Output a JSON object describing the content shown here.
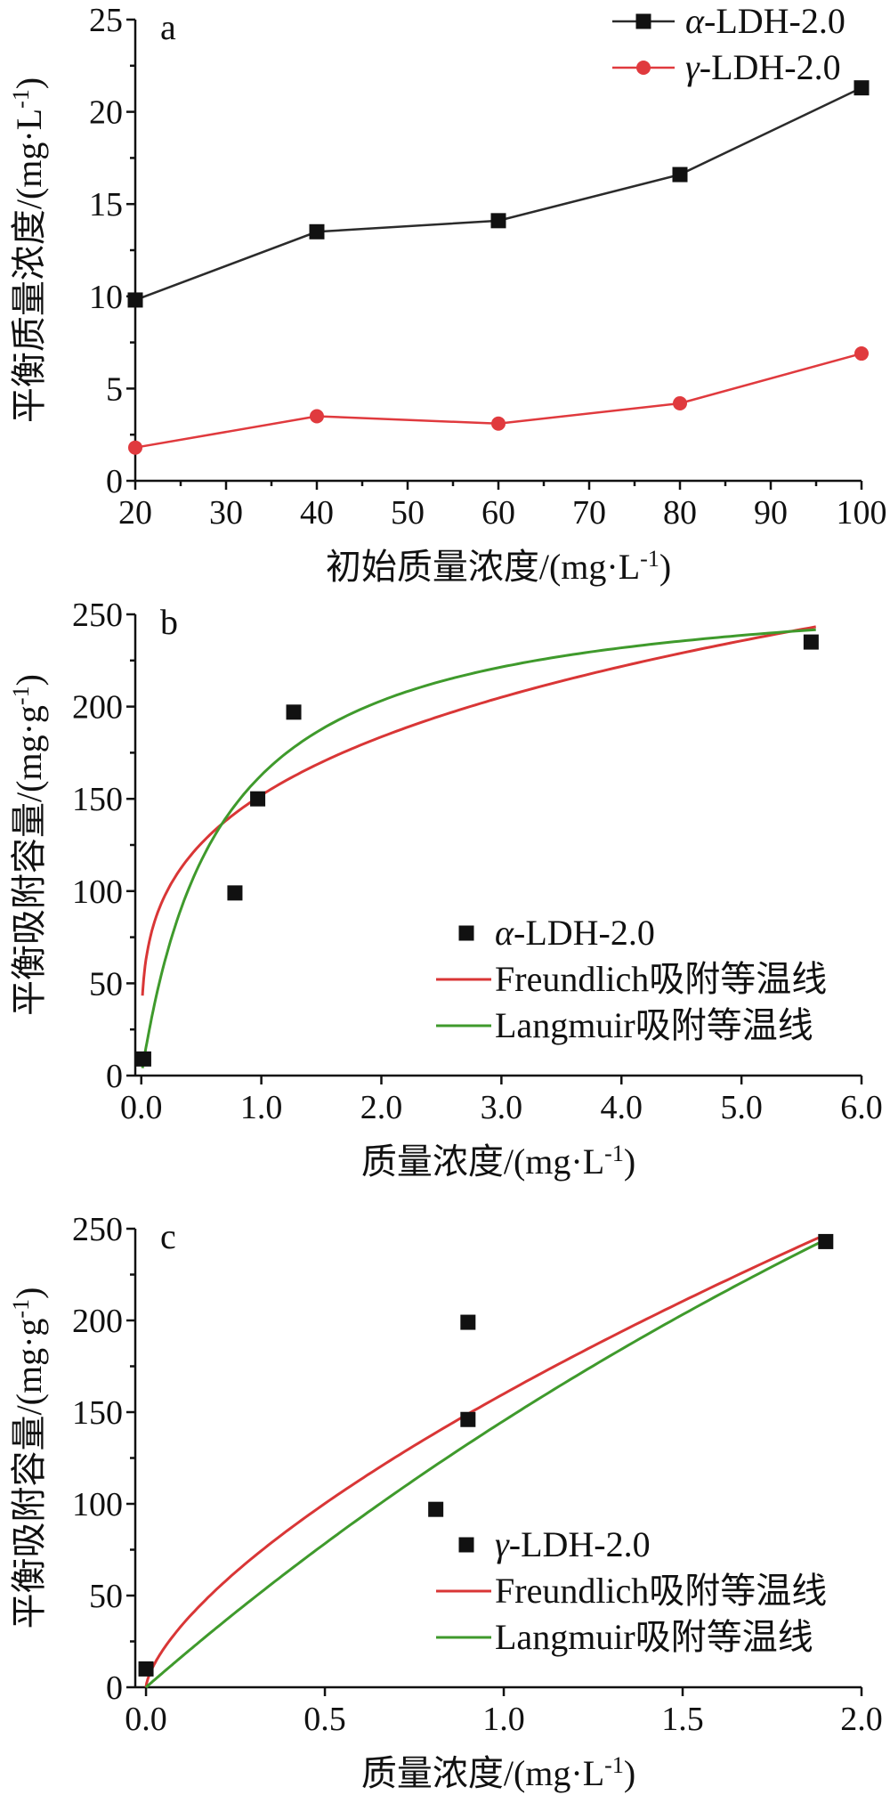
{
  "chart_data": [
    {
      "panel": "a",
      "type": "line",
      "xlabel": "初始质量浓度/(mg·L",
      "xlabel_sup": "-1",
      "xlabel_end": ")",
      "ylabel": "平衡质量浓度/(mg·L",
      "ylabel_sup": "-1",
      "ylabel_end": ")",
      "xlim": [
        20,
        100
      ],
      "ylim": [
        0,
        25
      ],
      "x_ticks": [
        "20",
        "30",
        "40",
        "50",
        "60",
        "70",
        "80",
        "90",
        "100"
      ],
      "y_ticks": [
        "0",
        "5",
        "10",
        "15",
        "20",
        "25"
      ],
      "legend_position": "top-right",
      "series": [
        {
          "name_greek": "α",
          "name": "-LDH-2.0",
          "marker": "square",
          "color": "#2b2b2b",
          "x": [
            20,
            40,
            60,
            80,
            100
          ],
          "y": [
            9.8,
            13.5,
            14.1,
            16.6,
            21.3
          ]
        },
        {
          "name_greek": "γ",
          "name": "-LDH-2.0",
          "marker": "circle",
          "color": "#e03a3e",
          "x": [
            20,
            40,
            60,
            80,
            100
          ],
          "y": [
            1.8,
            3.5,
            3.1,
            4.2,
            6.9
          ]
        }
      ]
    },
    {
      "panel": "b",
      "type": "scatter",
      "xlabel": "质量浓度/(mg·L",
      "xlabel_sup": "-1",
      "xlabel_end": ")",
      "ylabel": "平衡吸附容量/(mg·g",
      "ylabel_sup": "-1",
      "ylabel_end": ")",
      "xlim": [
        -0.05,
        6.0
      ],
      "ylim": [
        0,
        250
      ],
      "x_ticks": [
        "0.0",
        "1.0",
        "2.0",
        "3.0",
        "4.0",
        "5.0",
        "6.0"
      ],
      "y_ticks": [
        "0",
        "50",
        "100",
        "150",
        "200",
        "250"
      ],
      "legend_position": "bottom-right",
      "points": {
        "name_greek": "α",
        "name": "-LDH-2.0",
        "x": [
          0.02,
          0.78,
          0.97,
          1.27,
          5.58
        ],
        "y": [
          9,
          99,
          150,
          197,
          235
        ]
      },
      "fits": [
        {
          "name": "Freundlich吸附等温线",
          "color": "#d93636",
          "x_range": [
            0.01,
            5.62
          ],
          "model": "freundlich",
          "K": 152,
          "n": 3.67
        },
        {
          "name": "Langmuir吸附等温线",
          "color": "#3f9a2c",
          "x_range": [
            0.01,
            5.62
          ],
          "model": "langmuir",
          "qmax": 270,
          "KL": 1.52
        }
      ]
    },
    {
      "panel": "c",
      "type": "scatter",
      "xlabel": "质量浓度/(mg·L",
      "xlabel_sup": "-1",
      "xlabel_end": ")",
      "ylabel": "平衡吸附容量/(mg·g",
      "ylabel_sup": "-1",
      "ylabel_end": ")",
      "xlim": [
        -0.03,
        2.0
      ],
      "ylim": [
        0,
        250
      ],
      "x_ticks": [
        "0.0",
        "0.5",
        "1.0",
        "1.5",
        "2.0"
      ],
      "y_ticks": [
        "0",
        "50",
        "100",
        "150",
        "200",
        "250"
      ],
      "legend_position": "bottom-right",
      "points": {
        "name_greek": "γ",
        "name": "-LDH-2.0",
        "x": [
          0.0,
          0.81,
          0.9,
          0.9,
          1.9
        ],
        "y": [
          10,
          97,
          146,
          199,
          243
        ]
      },
      "fits": [
        {
          "name": "Freundlich吸附等温线",
          "color": "#d93636",
          "x_range": [
            0.0,
            1.88
          ],
          "model": "freundlich",
          "K": 160,
          "n": 1.48
        },
        {
          "name": "Langmuir吸附等温线",
          "color": "#3f9a2c",
          "x_range": [
            0.0,
            1.88
          ],
          "model": "langmuir",
          "qmax": 1000,
          "KL": 0.17
        }
      ]
    }
  ]
}
